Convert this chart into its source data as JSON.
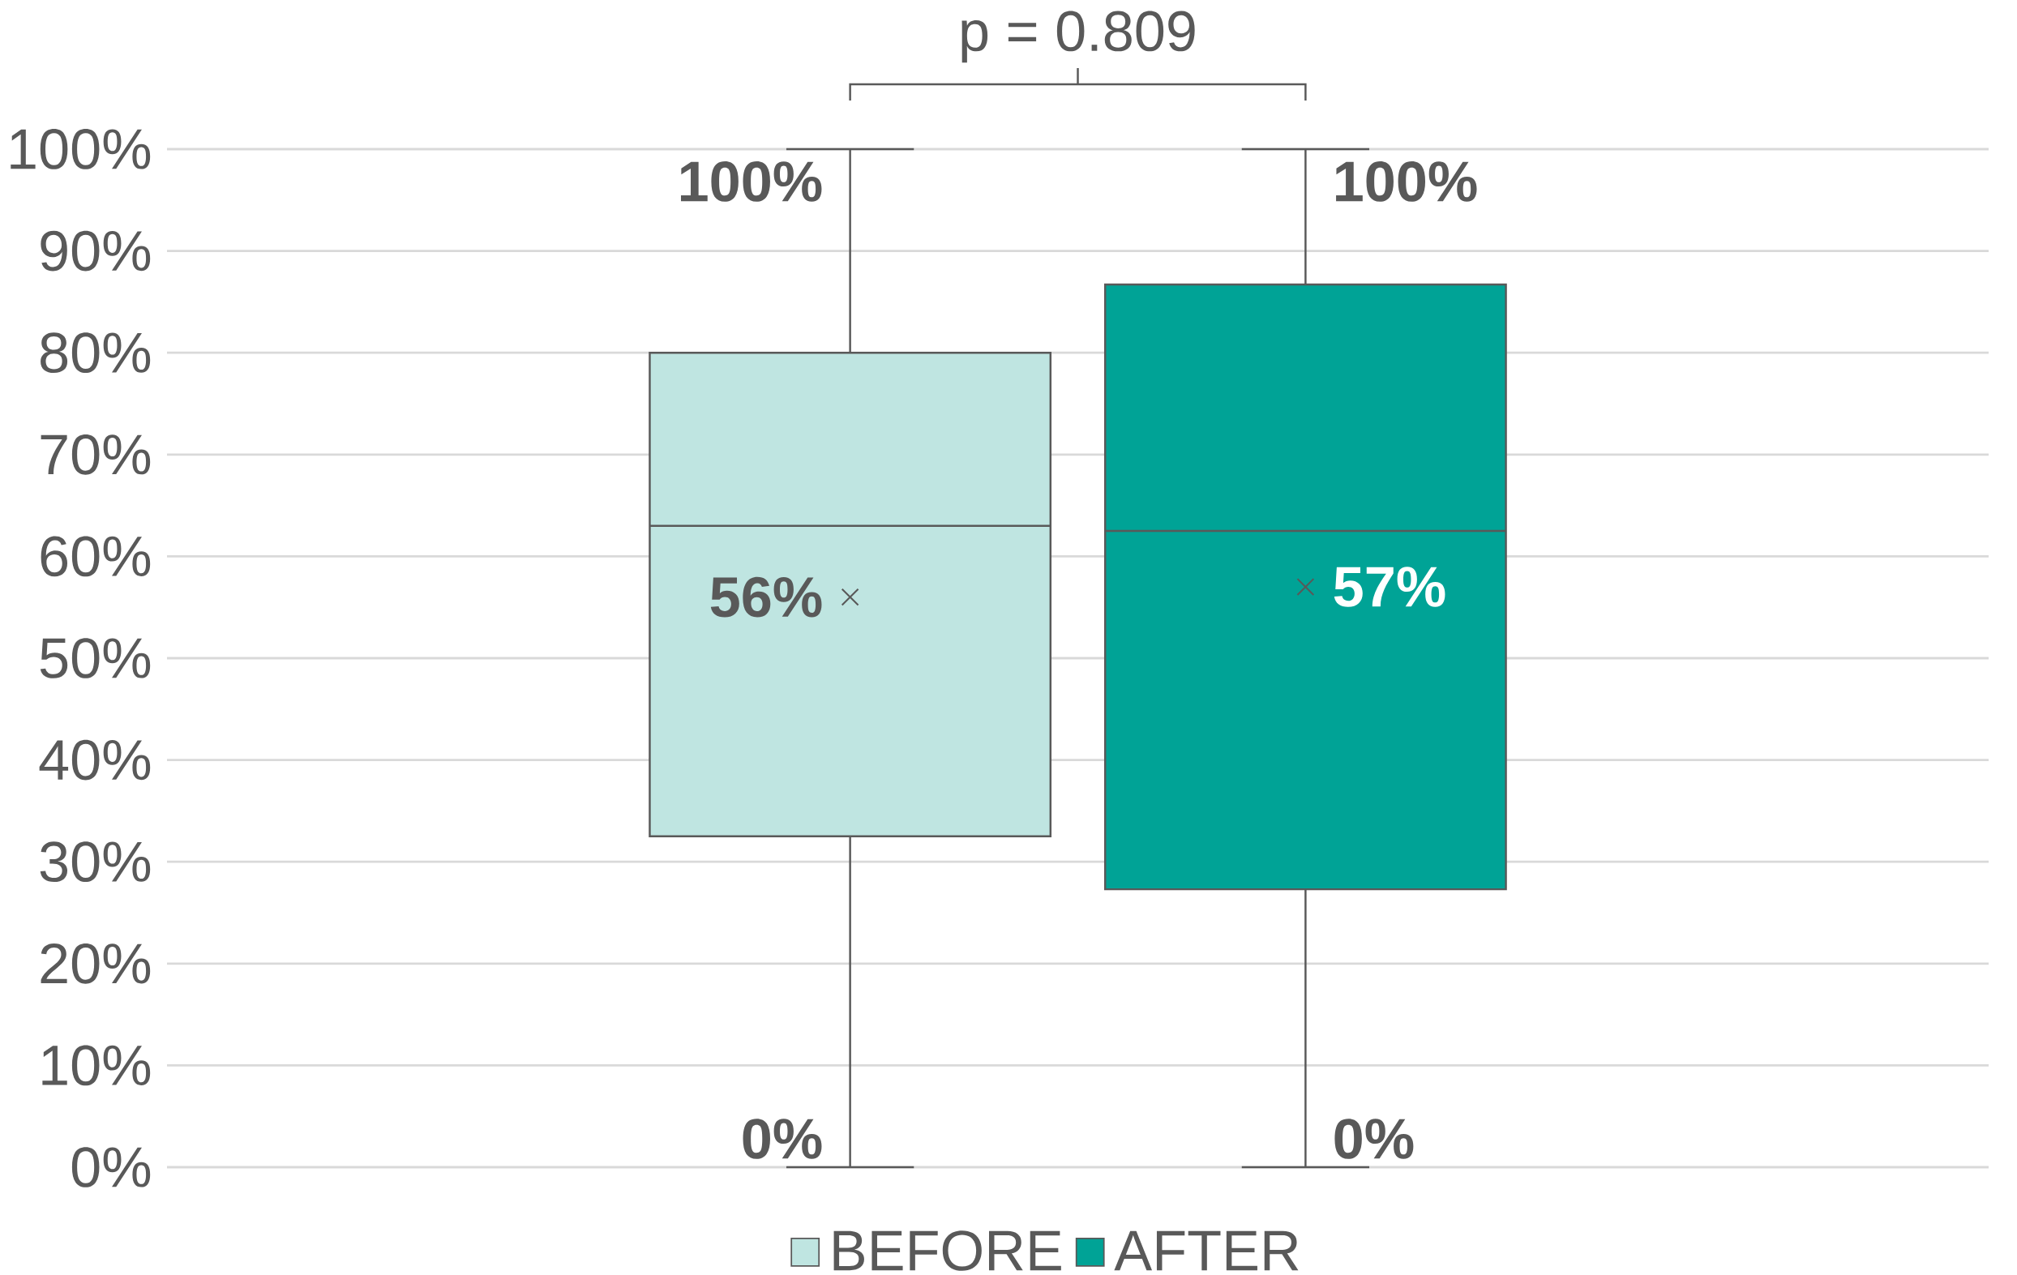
{
  "chart_data": {
    "type": "box",
    "categories": [
      null
    ],
    "series": [
      {
        "name": "BEFORE",
        "color": "#bfe5e1",
        "boxes": [
          {
            "low": 0,
            "q1": 32.5,
            "median": 63,
            "q3": 80,
            "high": 100,
            "mean": 56
          }
        ]
      },
      {
        "name": "AFTER",
        "color": "#00a396",
        "boxes": [
          {
            "low": 0,
            "q1": 27.3,
            "median": 62.5,
            "q3": 86.7,
            "high": 100,
            "mean": 57
          }
        ]
      }
    ],
    "ylim": [
      0,
      100
    ],
    "yticks": [
      {
        "value": 0,
        "label": "0%"
      },
      {
        "value": 10,
        "label": "10%"
      },
      {
        "value": 20,
        "label": "20%"
      },
      {
        "value": 30,
        "label": "30%"
      },
      {
        "value": 40,
        "label": "40%"
      },
      {
        "value": 50,
        "label": "50%"
      },
      {
        "value": 60,
        "label": "60%"
      },
      {
        "value": 70,
        "label": "70%"
      },
      {
        "value": 80,
        "label": "80%"
      },
      {
        "value": 90,
        "label": "90%"
      },
      {
        "value": 100,
        "label": "100%"
      }
    ],
    "grid": "y",
    "legend": "bottom",
    "marker": "cross",
    "annotations": [
      "p = 0.809",
      "100%",
      "56%",
      "0%",
      "100%",
      "57%",
      "0%"
    ]
  }
}
